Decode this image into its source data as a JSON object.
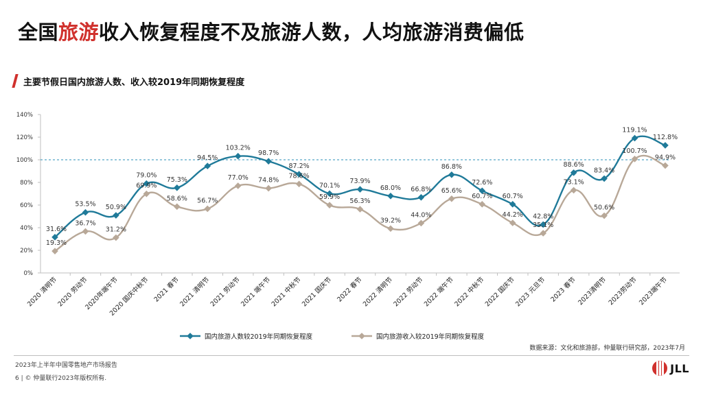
{
  "header": {
    "title_prefix": "全国",
    "title_highlight": "旅游",
    "title_rest": "收入恢复程度不及旅游人数，人均旅游消费偏低"
  },
  "subtitle": "主要节假日国内旅游人数、收入较2019年同期恢复程度",
  "source": "数据来源：文化和旅游部，仲量联行研究部，2023年7月",
  "footer": {
    "report": "2023年上半年中国零售地产市场报告",
    "page_number": "6",
    "copyright": "|  ©  仲量联行2023年版权所有."
  },
  "logo": {
    "text": "JLL"
  },
  "colors": {
    "series1": "#1f7a99",
    "series2": "#b8a898",
    "reference": "#2a8fb7",
    "accent": "#d0312d"
  },
  "chart_data": {
    "type": "line",
    "categories": [
      "2020 清明节",
      "2020 劳动节",
      "2020年端午节",
      "2020 国庆中秋节",
      "2021 春节",
      "2021 清明节",
      "2021 劳动节",
      "2021 端午节",
      "2021 中秋节",
      "2021 国庆节",
      "2022 春节",
      "2022 清明节",
      "2022 劳动节",
      "2022 端午节",
      "2022 中秋节",
      "2022 国庆节",
      "2023 元旦节",
      "2023 春节",
      "2023清明节",
      "2023劳动节",
      "2023端午节"
    ],
    "series": [
      {
        "name": "国内旅游人数较2019年同期恢复程度",
        "values": [
          31.6,
          53.5,
          50.9,
          79.0,
          75.3,
          94.5,
          103.2,
          98.7,
          87.2,
          70.1,
          73.9,
          68.0,
          66.8,
          86.8,
          72.6,
          60.7,
          42.8,
          88.6,
          83.4,
          119.1,
          112.8
        ]
      },
      {
        "name": "国内旅游收入较2019年同期恢复程度",
        "values": [
          19.3,
          36.7,
          31.2,
          69.9,
          58.6,
          56.7,
          77.0,
          74.8,
          78.6,
          59.9,
          56.3,
          39.2,
          44.0,
          65.6,
          60.7,
          44.2,
          35.1,
          73.1,
          50.6,
          100.7,
          94.9
        ]
      }
    ],
    "reference_line": 100,
    "ylim": [
      0,
      140
    ],
    "yticks": [
      0,
      20,
      40,
      60,
      80,
      100,
      120,
      140
    ],
    "ytick_labels": [
      "0%",
      "20%",
      "40%",
      "60%",
      "80%",
      "100%",
      "120%",
      "140%"
    ],
    "label_suffix": "%",
    "grid": false,
    "legend": "bottom"
  }
}
